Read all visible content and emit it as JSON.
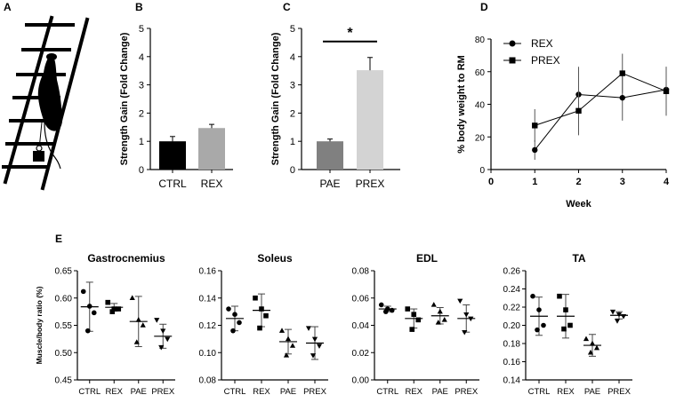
{
  "panel_labels": {
    "a": "A",
    "b": "B",
    "c": "C",
    "d": "D",
    "e": "E"
  },
  "chart_data": [
    {
      "id": "B",
      "type": "bar",
      "categories": [
        "CTRL",
        "REX"
      ],
      "values": [
        1.0,
        1.47
      ],
      "errors": [
        0.17,
        0.13
      ],
      "colors": [
        "#000000",
        "#a9a9a9"
      ],
      "ylabel": "Strength Gain (Fold Change)",
      "ylim": [
        0,
        5
      ],
      "yticks": [
        "0",
        "1",
        "2",
        "3",
        "4",
        "5"
      ]
    },
    {
      "id": "C",
      "type": "bar",
      "categories": [
        "PAE",
        "PREX"
      ],
      "values": [
        1.0,
        3.52
      ],
      "errors": [
        0.08,
        0.45
      ],
      "colors": [
        "#808080",
        "#d3d3d3"
      ],
      "ylabel": "Strength Gain (Fold Change)",
      "ylim": [
        0,
        5
      ],
      "yticks": [
        "0",
        "1",
        "2",
        "3",
        "4",
        "5"
      ],
      "significance": "*"
    },
    {
      "id": "D",
      "type": "line",
      "x": [
        1,
        2,
        3,
        4
      ],
      "series": [
        {
          "name": "REX",
          "marker": "circle",
          "values": [
            12,
            46,
            44,
            49
          ],
          "errors": [
            6,
            17,
            14,
            14
          ]
        },
        {
          "name": "PREX",
          "marker": "square",
          "values": [
            27,
            36,
            59,
            48
          ],
          "errors": [
            10,
            15,
            12,
            15
          ]
        }
      ],
      "xlabel": "Week",
      "ylabel": "% body weight to RM",
      "xlim": [
        0,
        4
      ],
      "ylim": [
        0,
        80
      ],
      "xticks": [
        "0",
        "1",
        "2",
        "3",
        "4"
      ],
      "yticks": [
        "0",
        "20",
        "40",
        "60",
        "80"
      ],
      "legend": "top-left"
    },
    {
      "id": "E1",
      "type": "scatter",
      "title": "Gastrocnemius",
      "categories": [
        "CTRL",
        "REX",
        "PAE",
        "PREX"
      ],
      "markers": [
        "circle",
        "square",
        "triangle-up",
        "triangle-down"
      ],
      "points": [
        [
          0.612,
          0.585,
          0.573,
          0.54
        ],
        [
          0.592,
          0.58,
          0.58,
          0.575
        ],
        [
          0.6,
          0.56,
          0.55,
          0.519
        ],
        [
          0.56,
          0.54,
          0.525,
          0.51
        ]
      ],
      "means": [
        0.584,
        0.583,
        0.557,
        0.53
      ],
      "sds": [
        0.045,
        0.007,
        0.046,
        0.022
      ],
      "ylabel": "Muscle/body ratio (%)",
      "ylim": [
        0.45,
        0.65
      ],
      "yticks": [
        "0.45",
        "0.50",
        "0.55",
        "0.60",
        "0.65"
      ]
    },
    {
      "id": "E2",
      "type": "scatter",
      "title": "Soleus",
      "categories": [
        "CTRL",
        "REX",
        "PAE",
        "PREX"
      ],
      "markers": [
        "circle",
        "square",
        "triangle-up",
        "triangle-down"
      ],
      "points": [
        [
          0.132,
          0.128,
          0.122,
          0.116
        ],
        [
          0.14,
          0.132,
          0.127,
          0.118
        ],
        [
          0.116,
          0.11,
          0.105,
          0.098
        ],
        [
          0.118,
          0.11,
          0.105,
          0.098
        ]
      ],
      "means": [
        0.125,
        0.131,
        0.108,
        0.107
      ],
      "sds": [
        0.009,
        0.012,
        0.009,
        0.012
      ],
      "ylabel": "",
      "ylim": [
        0.08,
        0.16
      ],
      "yticks": [
        "0.08",
        "0.10",
        "0.12",
        "0.14",
        "0.16"
      ]
    },
    {
      "id": "E3",
      "type": "scatter",
      "title": "EDL",
      "categories": [
        "CTRL",
        "REX",
        "PAE",
        "PREX"
      ],
      "markers": [
        "circle",
        "square",
        "triangle-up",
        "triangle-down"
      ],
      "points": [
        [
          0.055,
          0.052,
          0.051,
          0.05
        ],
        [
          0.052,
          0.048,
          0.044,
          0.037
        ],
        [
          0.055,
          0.05,
          0.044,
          0.042
        ],
        [
          0.058,
          0.048,
          0.045,
          0.035
        ]
      ],
      "means": [
        0.052,
        0.045,
        0.047,
        0.045
      ],
      "sds": [
        0.002,
        0.007,
        0.006,
        0.01
      ],
      "ylabel": "",
      "ylim": [
        0.0,
        0.08
      ],
      "yticks": [
        "0.00",
        "0.02",
        "0.04",
        "0.06",
        "0.08"
      ]
    },
    {
      "id": "E4",
      "type": "scatter",
      "title": "TA",
      "categories": [
        "CTRL",
        "REX",
        "PAE",
        "PREX"
      ],
      "markers": [
        "circle",
        "square",
        "triangle-up",
        "triangle-down"
      ],
      "points": [
        [
          0.232,
          0.217,
          0.2,
          0.195
        ],
        [
          0.232,
          0.217,
          0.2,
          0.196
        ],
        [
          0.185,
          0.18,
          0.175,
          0.17
        ],
        [
          0.215,
          0.212,
          0.21,
          0.205
        ]
      ],
      "means": [
        0.21,
        0.21,
        0.178,
        0.211
      ],
      "sds": [
        0.021,
        0.024,
        0.012,
        0.004
      ],
      "ylabel": "",
      "ylim": [
        0.14,
        0.26
      ],
      "yticks": [
        "0.14",
        "0.16",
        "0.18",
        "0.20",
        "0.22",
        "0.24",
        "0.26"
      ]
    }
  ]
}
